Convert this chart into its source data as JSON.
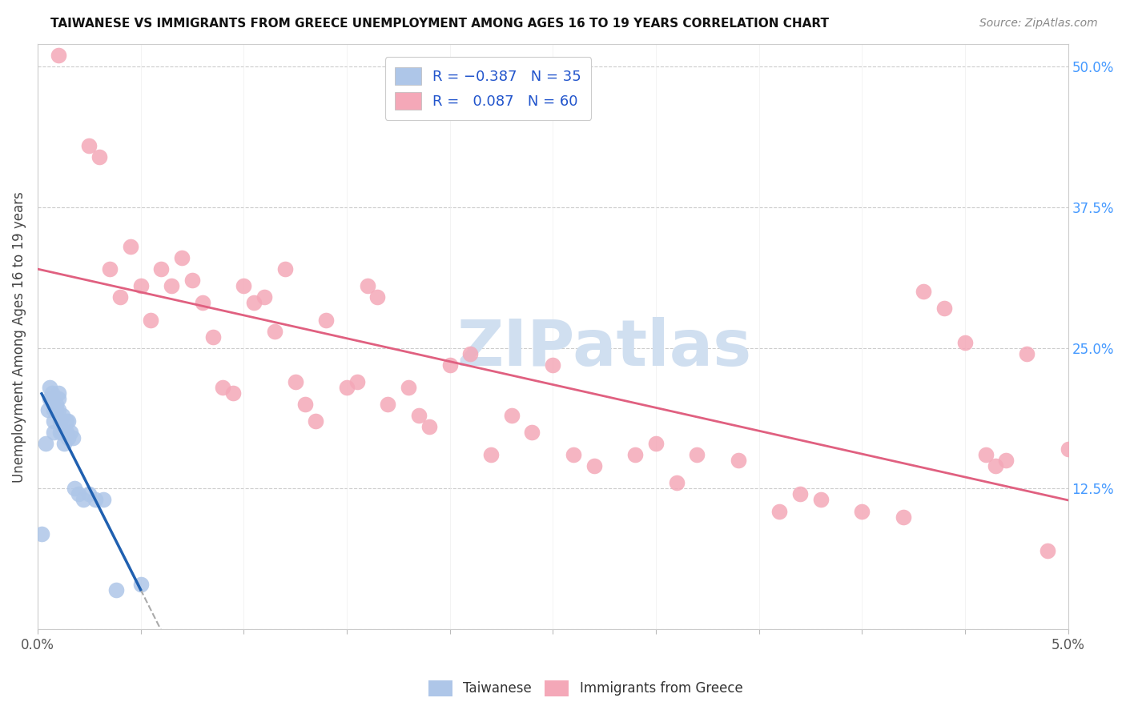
{
  "title": "TAIWANESE VS IMMIGRANTS FROM GREECE UNEMPLOYMENT AMONG AGES 16 TO 19 YEARS CORRELATION CHART",
  "source": "Source: ZipAtlas.com",
  "ylabel": "Unemployment Among Ages 16 to 19 years",
  "color_taiwanese": "#aec6e8",
  "color_greece": "#f4a8b8",
  "color_line_taiwanese": "#2060b0",
  "color_line_greece": "#e06080",
  "watermark": "ZIPatlas",
  "watermark_color": "#d0dff0",
  "xlim": [
    0.0,
    0.05
  ],
  "ylim": [
    0.0,
    0.52
  ],
  "taiwanese_x": [
    0.0002,
    0.0004,
    0.0005,
    0.0006,
    0.0006,
    0.0007,
    0.0007,
    0.0008,
    0.0008,
    0.0008,
    0.0009,
    0.0009,
    0.001,
    0.001,
    0.001,
    0.0011,
    0.0011,
    0.0012,
    0.0012,
    0.0013,
    0.0013,
    0.0014,
    0.0014,
    0.0015,
    0.0015,
    0.0016,
    0.0017,
    0.0018,
    0.002,
    0.0022,
    0.0025,
    0.0028,
    0.0032,
    0.0038,
    0.005
  ],
  "taiwanese_y": [
    0.085,
    0.165,
    0.195,
    0.215,
    0.205,
    0.21,
    0.205,
    0.195,
    0.185,
    0.175,
    0.2,
    0.195,
    0.21,
    0.205,
    0.195,
    0.185,
    0.175,
    0.19,
    0.175,
    0.175,
    0.165,
    0.185,
    0.175,
    0.185,
    0.17,
    0.175,
    0.17,
    0.125,
    0.12,
    0.115,
    0.12,
    0.115,
    0.115,
    0.035,
    0.04
  ],
  "greece_x": [
    0.001,
    0.0025,
    0.003,
    0.0035,
    0.004,
    0.0045,
    0.005,
    0.0055,
    0.006,
    0.0065,
    0.007,
    0.0075,
    0.008,
    0.0085,
    0.009,
    0.0095,
    0.01,
    0.0105,
    0.011,
    0.0115,
    0.012,
    0.0125,
    0.013,
    0.0135,
    0.014,
    0.015,
    0.0155,
    0.016,
    0.0165,
    0.017,
    0.018,
    0.0185,
    0.019,
    0.02,
    0.021,
    0.022,
    0.023,
    0.024,
    0.025,
    0.026,
    0.027,
    0.029,
    0.03,
    0.031,
    0.032,
    0.034,
    0.036,
    0.037,
    0.038,
    0.04,
    0.042,
    0.043,
    0.044,
    0.045,
    0.046,
    0.0465,
    0.047,
    0.048,
    0.049,
    0.05
  ],
  "greece_y": [
    0.51,
    0.43,
    0.42,
    0.32,
    0.295,
    0.34,
    0.305,
    0.275,
    0.32,
    0.305,
    0.33,
    0.31,
    0.29,
    0.26,
    0.215,
    0.21,
    0.305,
    0.29,
    0.295,
    0.265,
    0.32,
    0.22,
    0.2,
    0.185,
    0.275,
    0.215,
    0.22,
    0.305,
    0.295,
    0.2,
    0.215,
    0.19,
    0.18,
    0.235,
    0.245,
    0.155,
    0.19,
    0.175,
    0.235,
    0.155,
    0.145,
    0.155,
    0.165,
    0.13,
    0.155,
    0.15,
    0.105,
    0.12,
    0.115,
    0.105,
    0.1,
    0.3,
    0.285,
    0.255,
    0.155,
    0.145,
    0.15,
    0.245,
    0.07,
    0.16
  ]
}
